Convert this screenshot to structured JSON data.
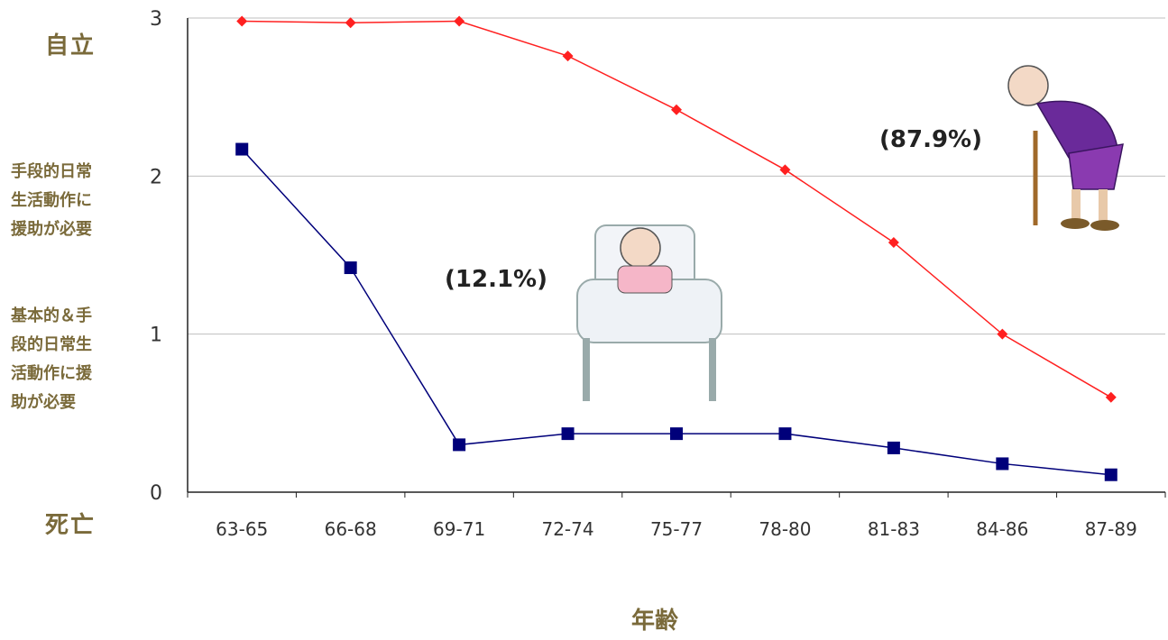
{
  "chart_data": {
    "type": "line",
    "categories": [
      "63-65",
      "66-68",
      "69-71",
      "72-74",
      "75-77",
      "78-80",
      "81-83",
      "84-86",
      "87-89"
    ],
    "series": [
      {
        "color": "#ff2020",
        "marker": "diamond",
        "values": [
          2.98,
          2.97,
          2.98,
          2.76,
          2.42,
          2.04,
          1.58,
          1.0,
          0.6
        ]
      },
      {
        "color": "#00007a",
        "marker": "square",
        "values": [
          2.17,
          1.42,
          0.3,
          0.37,
          0.37,
          0.37,
          0.28,
          0.18,
          0.11
        ]
      }
    ],
    "ylim": [
      0,
      3
    ],
    "yticks": [
      "0",
      "1",
      "2",
      "3"
    ],
    "xlabel": "年齢",
    "side_labels": {
      "top": "自立",
      "upper_mid": "手段的日常\n生活動作に\n援助が必要",
      "lower_mid": "基本的＆手\n段的日常生\n活動作に援\n助が必要",
      "bottom": "死亡"
    },
    "annotations": {
      "red_pct": "(87.9%)",
      "blue_pct": "(12.1%)"
    },
    "grid": true
  }
}
